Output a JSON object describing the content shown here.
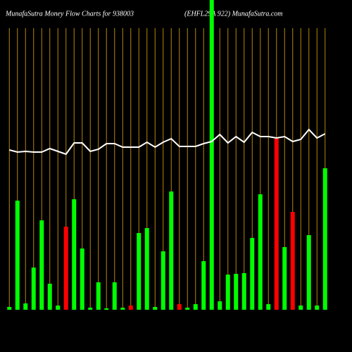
{
  "chart_data": {
    "type": "bar",
    "title": "MunafaSutra  Money Flow  Charts for 938003",
    "title_right": "(EHFL29A 922) MunafaSutra.com",
    "categories": [
      null,
      null,
      null,
      null,
      null,
      null,
      null,
      null,
      null,
      null,
      null,
      null,
      null,
      null,
      null,
      null,
      null,
      null,
      null,
      null,
      null,
      null,
      null,
      null,
      null,
      null,
      null,
      null,
      null,
      null,
      null,
      null,
      null,
      null,
      null,
      null,
      null,
      null,
      null,
      null
    ],
    "values": [
      4,
      155,
      9,
      60,
      127,
      37,
      6,
      118,
      157,
      87,
      3,
      39,
      2,
      39,
      3,
      6,
      109,
      116,
      4,
      83,
      168,
      8,
      3,
      8,
      69,
      440,
      12,
      50,
      51,
      52,
      102,
      164,
      8,
      244,
      89,
      139,
      6,
      106,
      6,
      201
    ],
    "colors": [
      "#00ff00",
      "#00ff00",
      "#00ff00",
      "#00ff00",
      "#00ff00",
      "#00ff00",
      "#00ff00",
      "#ff0000",
      "#00ff00",
      "#00ff00",
      "#00ff00",
      "#00ff00",
      "#00ff00",
      "#00ff00",
      "#00ff00",
      "#ff0000",
      "#00ff00",
      "#00ff00",
      "#00ff00",
      "#00ff00",
      "#00ff00",
      "#ff0000",
      "#00ff00",
      "#00ff00",
      "#00ff00",
      "#00ff00",
      "#00ff00",
      "#00ff00",
      "#00ff00",
      "#00ff00",
      "#00ff00",
      "#00ff00",
      "#00ff00",
      "#ff0000",
      "#00ff00",
      "#ff0000",
      "#00ff00",
      "#00ff00",
      "#00ff00",
      "#00ff00"
    ],
    "line": {
      "color": "#ffffff",
      "values": [
        227,
        224,
        225,
        224,
        224,
        229,
        225,
        221,
        237,
        237,
        225,
        228,
        236,
        236,
        231,
        231,
        231,
        238,
        231,
        238,
        243,
        232,
        232,
        232,
        236,
        239,
        249,
        237,
        246,
        238,
        252,
        246,
        246,
        244,
        246,
        239,
        242,
        256,
        244,
        250
      ]
    },
    "ylim": [
      0,
      440
    ],
    "grid_color": "#b8860b"
  }
}
